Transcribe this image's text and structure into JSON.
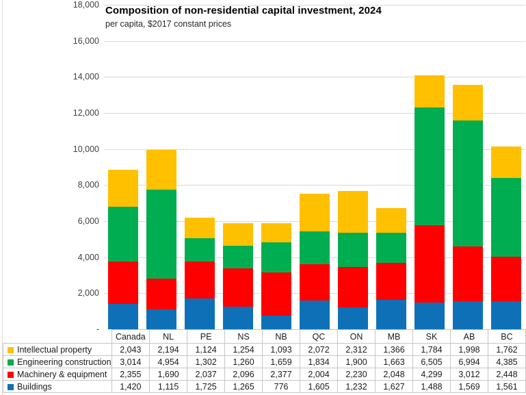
{
  "chart_data": {
    "type": "bar",
    "stacked": true,
    "title": "Composition of non-residential capital investment, 2024",
    "subtitle": "per capita, $2017 constant prices",
    "categories": [
      "Canada",
      "NL",
      "PE",
      "NS",
      "NB",
      "QC",
      "ON",
      "MB",
      "SK",
      "AB",
      "BC"
    ],
    "series": [
      {
        "name": "Buildings",
        "color": "#0e71b8",
        "values": [
          1420,
          1115,
          1725,
          1265,
          776,
          1605,
          1232,
          1627,
          1488,
          1569,
          1561
        ]
      },
      {
        "name": "Machinery & equipment",
        "color": "#fe0000",
        "values": [
          2355,
          1690,
          2037,
          2096,
          2377,
          2004,
          2230,
          2048,
          4299,
          3012,
          2448
        ]
      },
      {
        "name": "Engineering construction",
        "color": "#00ad50",
        "values": [
          3014,
          4954,
          1302,
          1260,
          1659,
          1834,
          1900,
          1663,
          6505,
          6994,
          4385
        ]
      },
      {
        "name": "Intellectual property",
        "color": "#ffc000",
        "values": [
          2043,
          2194,
          1124,
          1254,
          1093,
          2072,
          2312,
          1366,
          1784,
          1998,
          1762
        ]
      }
    ],
    "table_row_order": [
      "Intellectual property",
      "Engineering construction",
      "Machinery & equipment",
      "Buildings"
    ],
    "ylim": [
      0,
      18000
    ],
    "y_tick_step": 2000,
    "y_tick_labels": [
      "18,000",
      "16,000",
      "14,000",
      "12,000",
      "10,000",
      "8,000",
      "6,000",
      "4,000",
      "2,000",
      "-"
    ],
    "grid": "horizontal gridlines only",
    "legend_position": "left column of data table",
    "colors": {
      "gridline": "#d9d9d9",
      "table_border": "#c6c6c6",
      "axis_text": "#404040"
    }
  }
}
